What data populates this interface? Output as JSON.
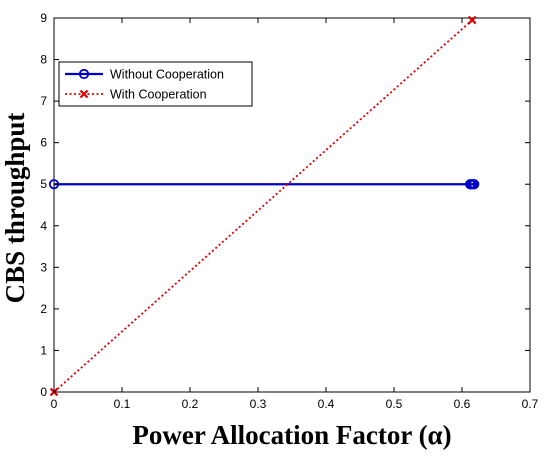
{
  "chart_data": {
    "type": "line",
    "title": "",
    "xlabel": "Power Allocation Factor (α)",
    "ylabel": "CBS throughput",
    "xlim": [
      0,
      0.7
    ],
    "ylim": [
      0,
      9
    ],
    "xticks": [
      0,
      0.1,
      0.2,
      0.3,
      0.4,
      0.5,
      0.6,
      0.7
    ],
    "yticks": [
      0,
      1,
      2,
      3,
      4,
      5,
      6,
      7,
      8,
      9
    ],
    "xtick_labels": [
      "0",
      "0.1",
      "0.2",
      "0.3",
      "0.4",
      "0.5",
      "0.6",
      "0.7"
    ],
    "ytick_labels": [
      "0",
      "1",
      "2",
      "3",
      "4",
      "5",
      "6",
      "7",
      "8",
      "9"
    ],
    "grid": false,
    "legend_position": "top-left",
    "series": [
      {
        "name": "Without Cooperation",
        "color": "#0000cc",
        "line_style": "solid",
        "marker": "circle",
        "x": [
          0,
          0.612,
          0.614,
          0.616,
          0.618
        ],
        "y": [
          5,
          5,
          5,
          5,
          5
        ]
      },
      {
        "name": "With Cooperation",
        "color": "#dd0000",
        "line_style": "dotted",
        "marker": "x",
        "x": [
          0,
          0.615
        ],
        "y": [
          0,
          8.95
        ]
      }
    ]
  }
}
